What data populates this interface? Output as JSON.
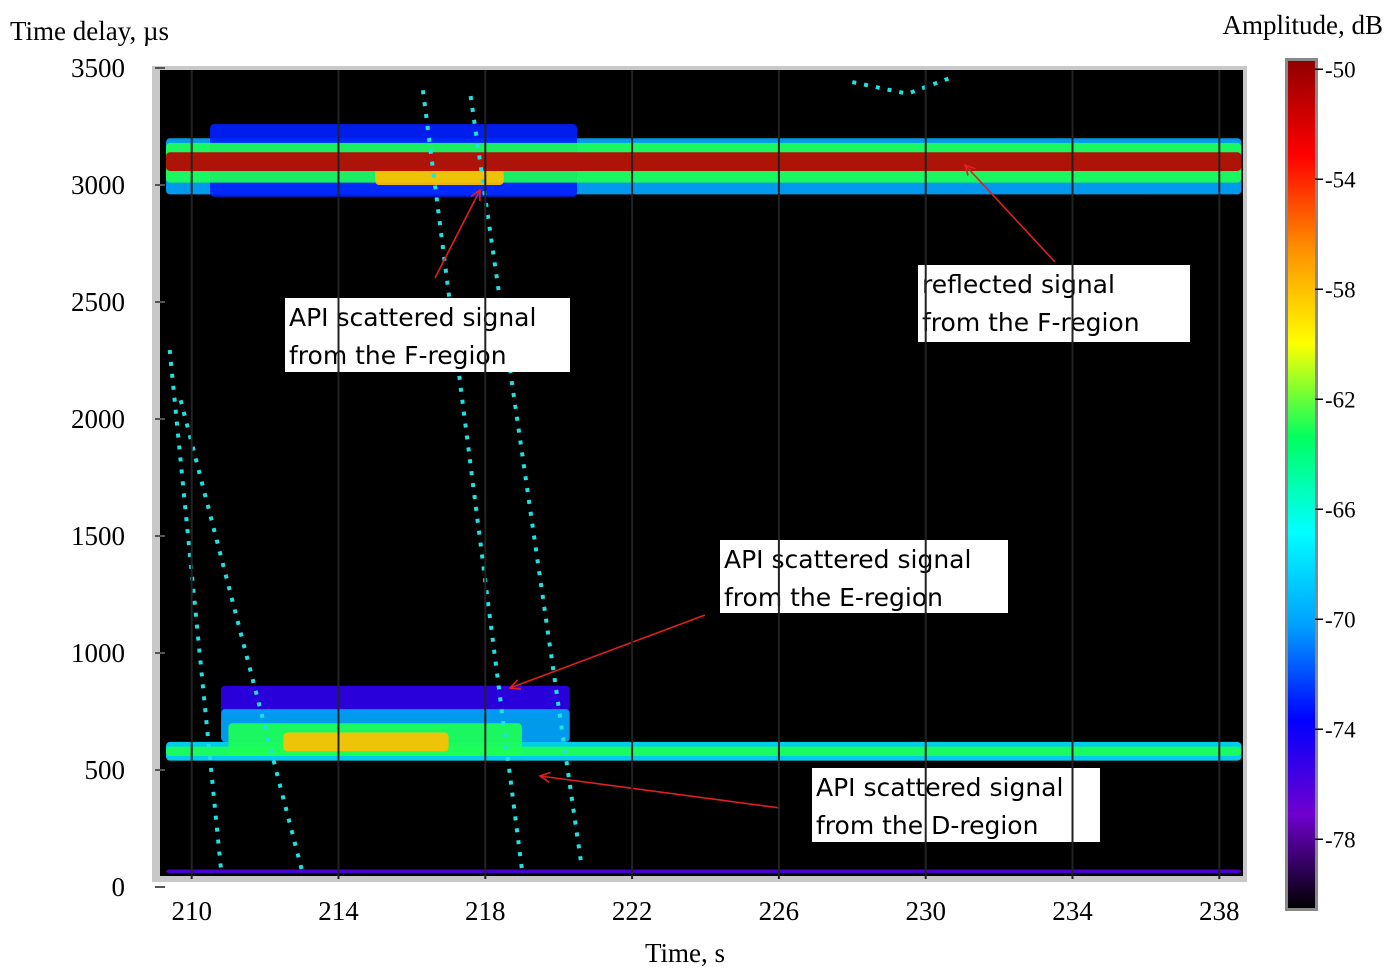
{
  "chart_data": {
    "type": "heatmap",
    "y_label": "Time delay, µs",
    "x_label": "Time, s",
    "colorbar_label": "Amplitude, dB",
    "xlim": [
      209,
      238.7
    ],
    "ylim": [
      0,
      3500
    ],
    "zlim": [
      -80.5,
      -49.7
    ],
    "xticks": [
      210,
      214,
      218,
      222,
      226,
      230,
      234,
      238
    ],
    "yticks": [
      0,
      500,
      1000,
      1500,
      2000,
      2500,
      3000,
      3500
    ],
    "zticks": [
      -50,
      -54,
      -58,
      -62,
      -66,
      -70,
      -74,
      -78
    ],
    "colormap": [
      "#000000",
      "#7000d0",
      "#0000ff",
      "#00a0ff",
      "#00ffff",
      "#00ff60",
      "#ffff00",
      "#ff9000",
      "#ff0000",
      "#900000"
    ],
    "bands": [
      {
        "x": [
          209.3,
          238.6
        ],
        "y": [
          2960,
          3200
        ],
        "value": -70
      },
      {
        "x": [
          210.5,
          220.5
        ],
        "y": [
          2950,
          3260
        ],
        "value": -73
      },
      {
        "x": [
          209.3,
          238.6
        ],
        "y": [
          3010,
          3180
        ],
        "value": -63
      },
      {
        "x": [
          215,
          218.5
        ],
        "y": [
          3000,
          3070
        ],
        "value": -58
      },
      {
        "x": [
          209.3,
          238.6
        ],
        "y": [
          3060,
          3140
        ],
        "value": -51
      },
      {
        "x": [
          210.8,
          220.3
        ],
        "y": [
          740,
          860
        ],
        "value": -75
      },
      {
        "x": [
          210.8,
          220.3
        ],
        "y": [
          620,
          760
        ],
        "value": -70
      },
      {
        "x": [
          209.3,
          238.6
        ],
        "y": [
          540,
          620
        ],
        "value": -68
      },
      {
        "x": [
          211,
          219
        ],
        "y": [
          560,
          700
        ],
        "value": -63
      },
      {
        "x": [
          209.3,
          238.6
        ],
        "y": [
          560,
          600
        ],
        "value": -63
      },
      {
        "x": [
          212.5,
          217
        ],
        "y": [
          580,
          660
        ],
        "value": -58
      },
      {
        "x": [
          209.3,
          238.6
        ],
        "y": [
          60,
          75
        ],
        "value": -76
      }
    ],
    "traces": [
      {
        "color": "#20e0e0",
        "x": [
          209.4,
          210.8
        ],
        "y": [
          2295,
          73
        ]
      },
      {
        "color": "#20e0e0",
        "x": [
          209.7,
          213.0
        ],
        "y": [
          2080,
          73
        ]
      },
      {
        "color": "#20e0e0",
        "x": [
          216.3,
          219.0
        ],
        "y": [
          3405,
          73
        ]
      },
      {
        "color": "#20e0e0",
        "x": [
          217.6,
          220.6
        ],
        "y": [
          3380,
          115
        ]
      },
      {
        "color": "#20e0e0",
        "x": [
          228.0,
          229.5,
          230.8
        ],
        "y": [
          3440,
          3390,
          3465
        ]
      }
    ],
    "annotations": [
      {
        "lines": [
          "API scattered signal",
          "from the F-region"
        ]
      },
      {
        "lines": [
          "reflected signal",
          "from the F-region"
        ]
      },
      {
        "lines": [
          "API scattered signal",
          "from the E-region"
        ]
      },
      {
        "lines": [
          "API scattered signal",
          "from the D-region"
        ]
      }
    ]
  }
}
